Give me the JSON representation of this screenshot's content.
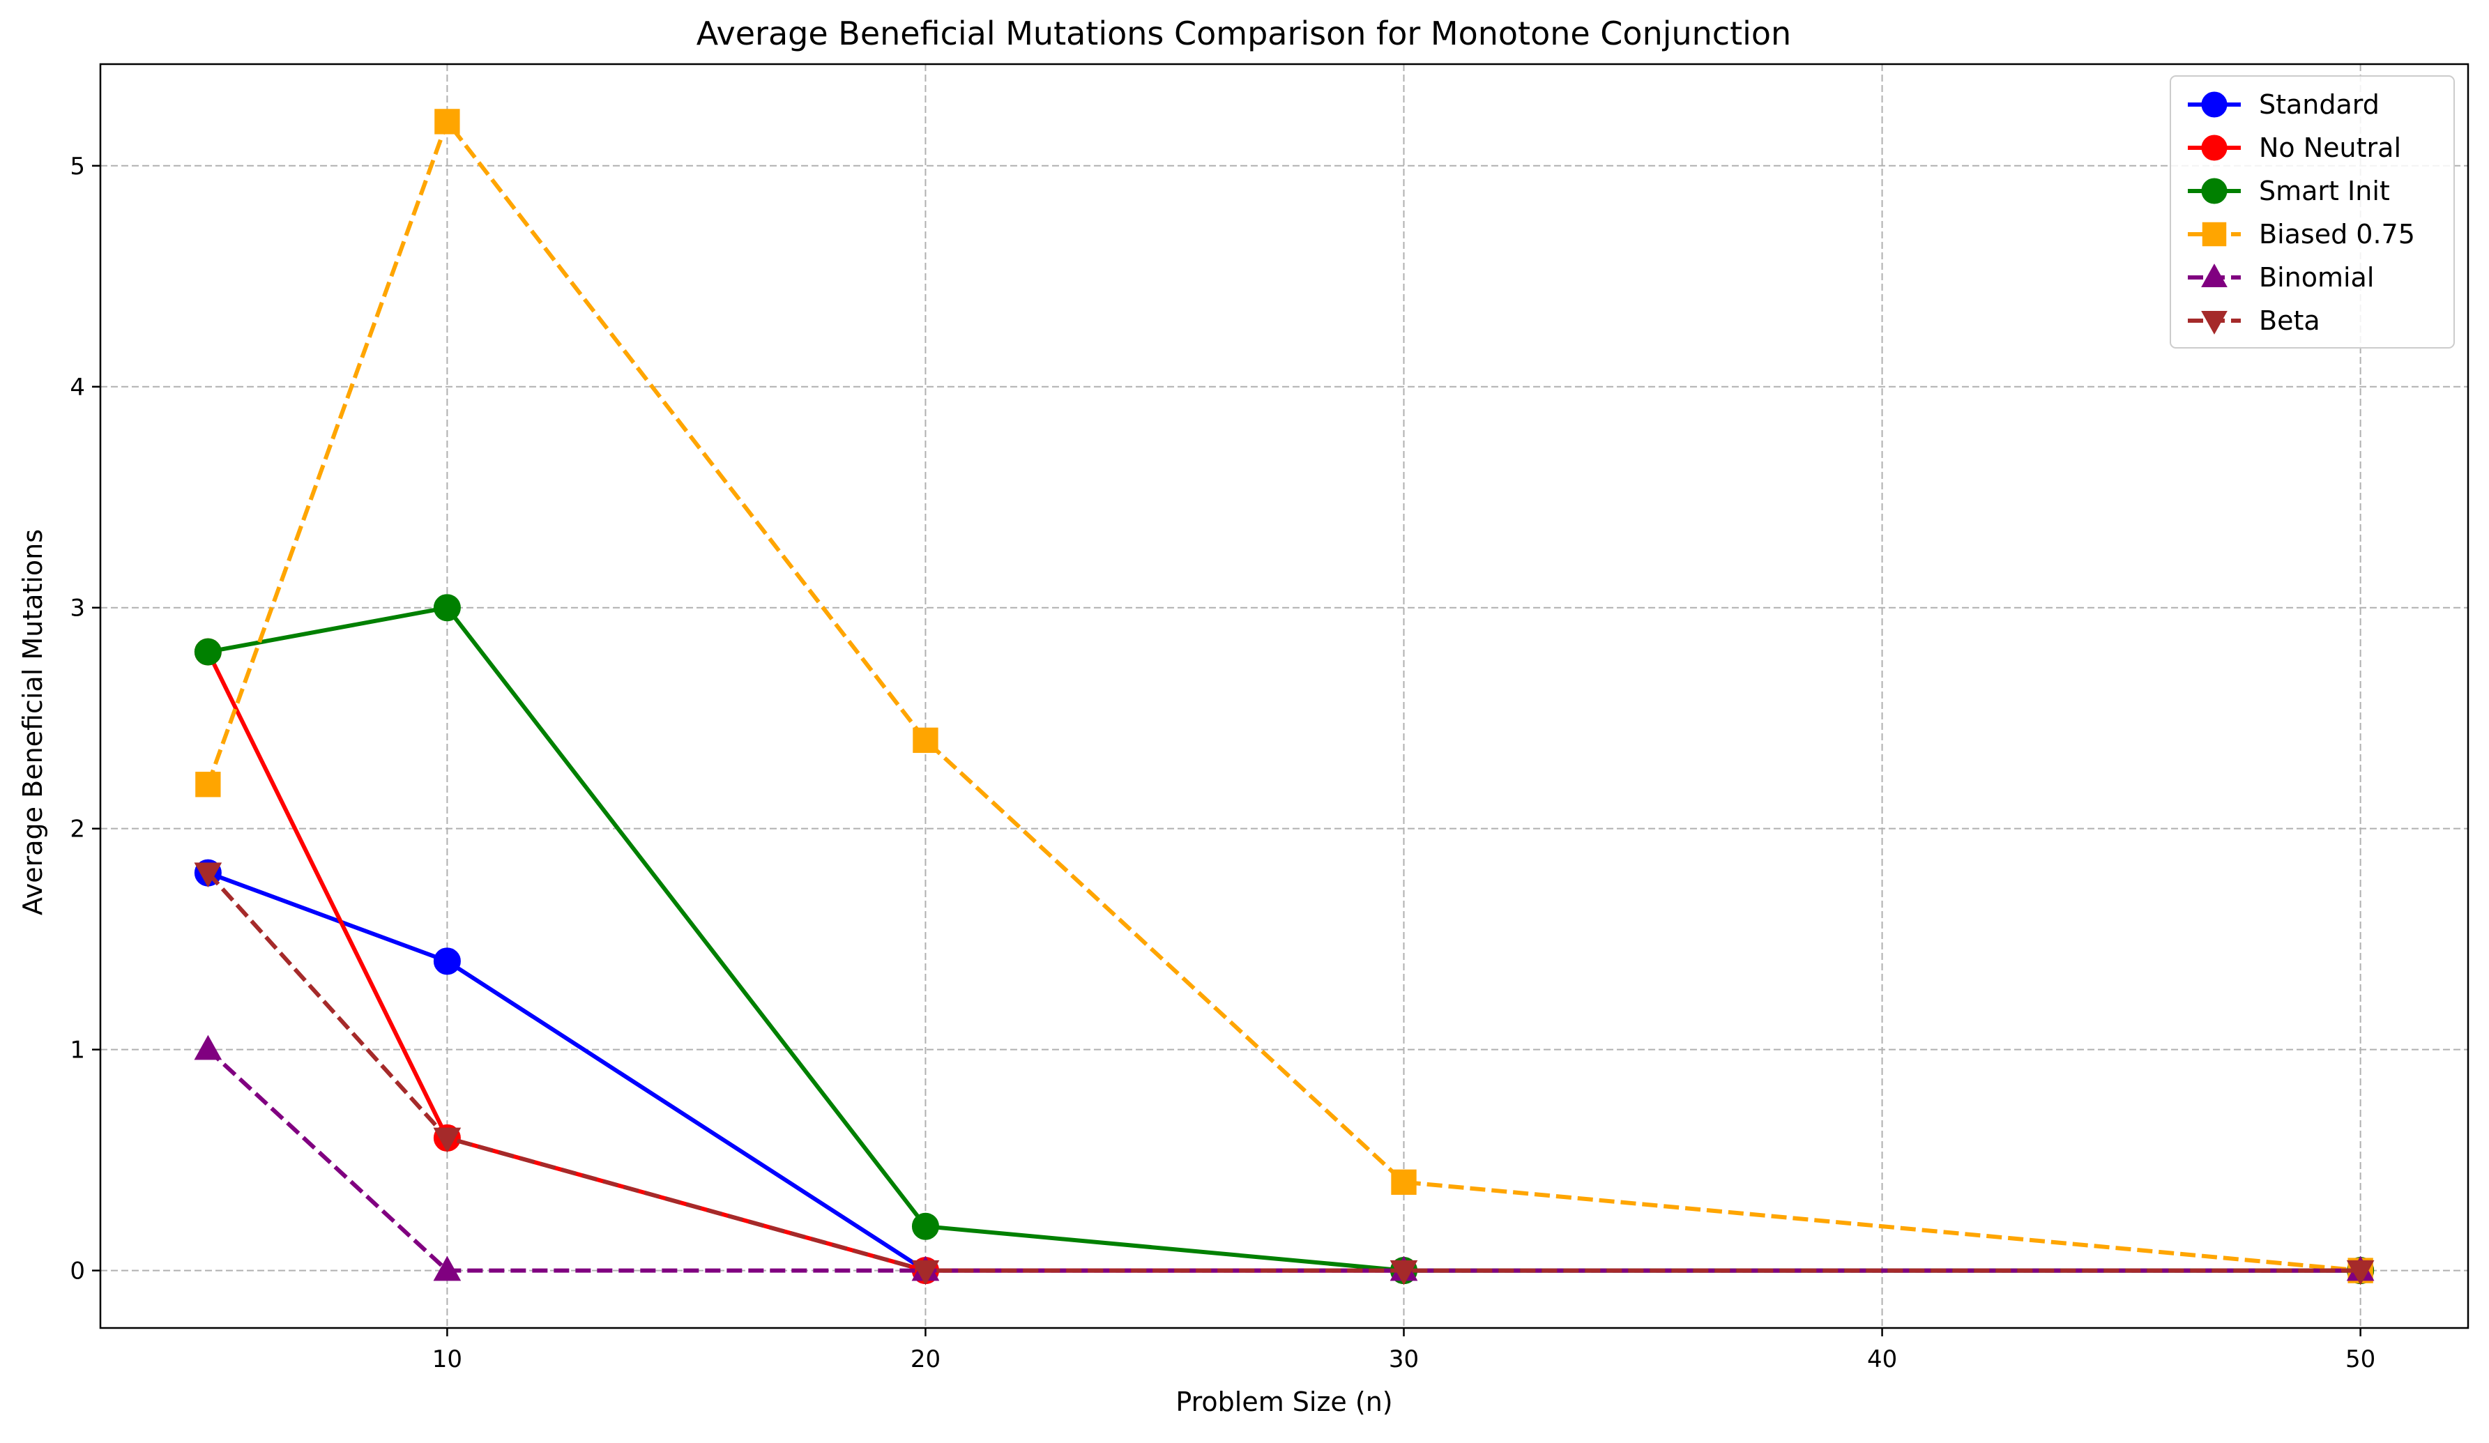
{
  "chart_data": {
    "type": "line",
    "title": "Average Beneficial Mutations Comparison for Monotone Conjunction",
    "xlabel": "Problem Size (n)",
    "ylabel": "Average Beneficial Mutations",
    "x": [
      5,
      10,
      20,
      30,
      50
    ],
    "xlim": [
      2.75,
      52.25
    ],
    "ylim": [
      -0.26,
      5.46
    ],
    "xticks": [
      10,
      20,
      30,
      40,
      50
    ],
    "xtick_labels": [
      "10",
      "20",
      "30",
      "40",
      "50"
    ],
    "yticks": [
      0,
      1,
      2,
      3,
      4,
      5
    ],
    "ytick_labels": [
      "0",
      "1",
      "2",
      "3",
      "4",
      "5"
    ],
    "grid": true,
    "legend_position": "top-right",
    "series": [
      {
        "name": "Standard",
        "values": [
          1.8,
          1.4,
          0.0,
          0.0,
          0.0
        ],
        "color": "#0000ff",
        "linestyle": "solid",
        "marker": "circle"
      },
      {
        "name": "No Neutral",
        "values": [
          2.8,
          0.6,
          0.0,
          0.0,
          0.0
        ],
        "color": "#ff0000",
        "linestyle": "solid",
        "marker": "circle"
      },
      {
        "name": "Smart Init",
        "values": [
          2.8,
          3.0,
          0.2,
          0.0,
          0.0
        ],
        "color": "#008000",
        "linestyle": "solid",
        "marker": "circle"
      },
      {
        "name": "Biased 0.75",
        "values": [
          2.2,
          5.2,
          2.4,
          0.4,
          0.0
        ],
        "color": "#ffa500",
        "linestyle": "dashed",
        "marker": "square"
      },
      {
        "name": "Binomial",
        "values": [
          1.0,
          0.0,
          0.0,
          0.0,
          0.0
        ],
        "color": "#800080",
        "linestyle": "dashed",
        "marker": "triangle-up"
      },
      {
        "name": "Beta",
        "values": [
          1.8,
          0.6,
          0.0,
          0.0,
          0.0
        ],
        "color": "#a52a2a",
        "linestyle": "dashed",
        "marker": "triangle-down"
      }
    ]
  }
}
